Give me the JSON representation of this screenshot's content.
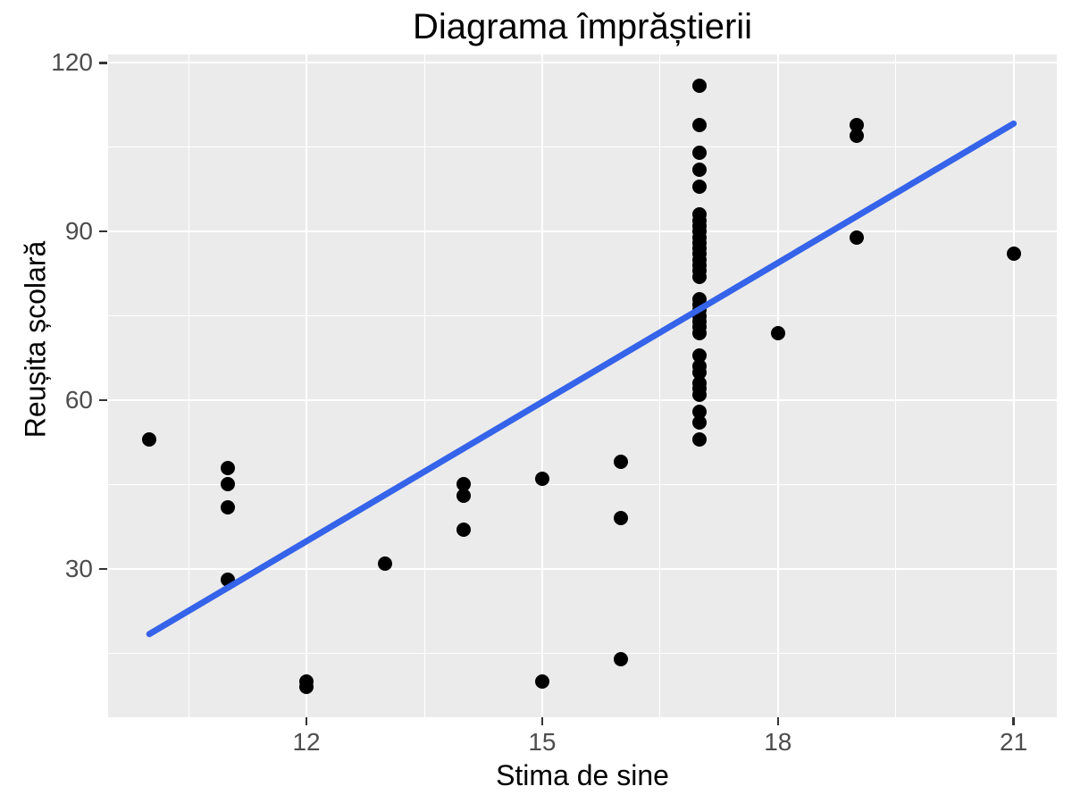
{
  "page": {
    "background": "#FFFFFF"
  },
  "chart_data": {
    "type": "scatter",
    "title": "Diagrama împrăștierii",
    "xlabel": "Stima de sine",
    "ylabel": "Reușita școlară",
    "x_ticks": [
      12,
      15,
      18,
      21
    ],
    "y_ticks": [
      30,
      60,
      90,
      120
    ],
    "x_minor_gridlines": [
      10.5,
      13.5,
      16.5,
      19.5
    ],
    "y_minor_gridlines": [
      15,
      45,
      75,
      105
    ],
    "xlim": [
      9.475,
      21.55
    ],
    "ylim": [
      3.6,
      121.5
    ],
    "grid": "on",
    "legend": "none",
    "panel_background": "#EBEBEB",
    "gridline_color": "#FFFFFF",
    "point_color": "#000000",
    "tick_label_color": "#4D4D4D",
    "tick_mark_color": "#333333",
    "title_color": "#000000",
    "points": [
      [
        10,
        53
      ],
      [
        11,
        48
      ],
      [
        11,
        45
      ],
      [
        11,
        41
      ],
      [
        11,
        28
      ],
      [
        12,
        10
      ],
      [
        12,
        9
      ],
      [
        13,
        31
      ],
      [
        14,
        45
      ],
      [
        14,
        43
      ],
      [
        14,
        37
      ],
      [
        15,
        46
      ],
      [
        15,
        10
      ],
      [
        16,
        49
      ],
      [
        16,
        39
      ],
      [
        16,
        14
      ],
      [
        17,
        116
      ],
      [
        17,
        109
      ],
      [
        17,
        104
      ],
      [
        17,
        101
      ],
      [
        17,
        98
      ],
      [
        17,
        93
      ],
      [
        17,
        92
      ],
      [
        17,
        91
      ],
      [
        17,
        90
      ],
      [
        17,
        89
      ],
      [
        17,
        88
      ],
      [
        17,
        87
      ],
      [
        17,
        86
      ],
      [
        17,
        85
      ],
      [
        17,
        84
      ],
      [
        17,
        83
      ],
      [
        17,
        82
      ],
      [
        17,
        78
      ],
      [
        17,
        77
      ],
      [
        17,
        76
      ],
      [
        17,
        75
      ],
      [
        17,
        74
      ],
      [
        17,
        73
      ],
      [
        17,
        72
      ],
      [
        17,
        68
      ],
      [
        17,
        66
      ],
      [
        17,
        65
      ],
      [
        17,
        63
      ],
      [
        17,
        62
      ],
      [
        17,
        61
      ],
      [
        17,
        58
      ],
      [
        17,
        56
      ],
      [
        17,
        53
      ],
      [
        18,
        72
      ],
      [
        19,
        109
      ],
      [
        19,
        107
      ],
      [
        19,
        89
      ],
      [
        21,
        86
      ]
    ],
    "regression_line": {
      "type": "linear",
      "color": "#3563E9",
      "x_start": 10,
      "y_start": 18.4,
      "x_end": 21,
      "y_end": 109.2,
      "stroke_width": 7
    }
  }
}
